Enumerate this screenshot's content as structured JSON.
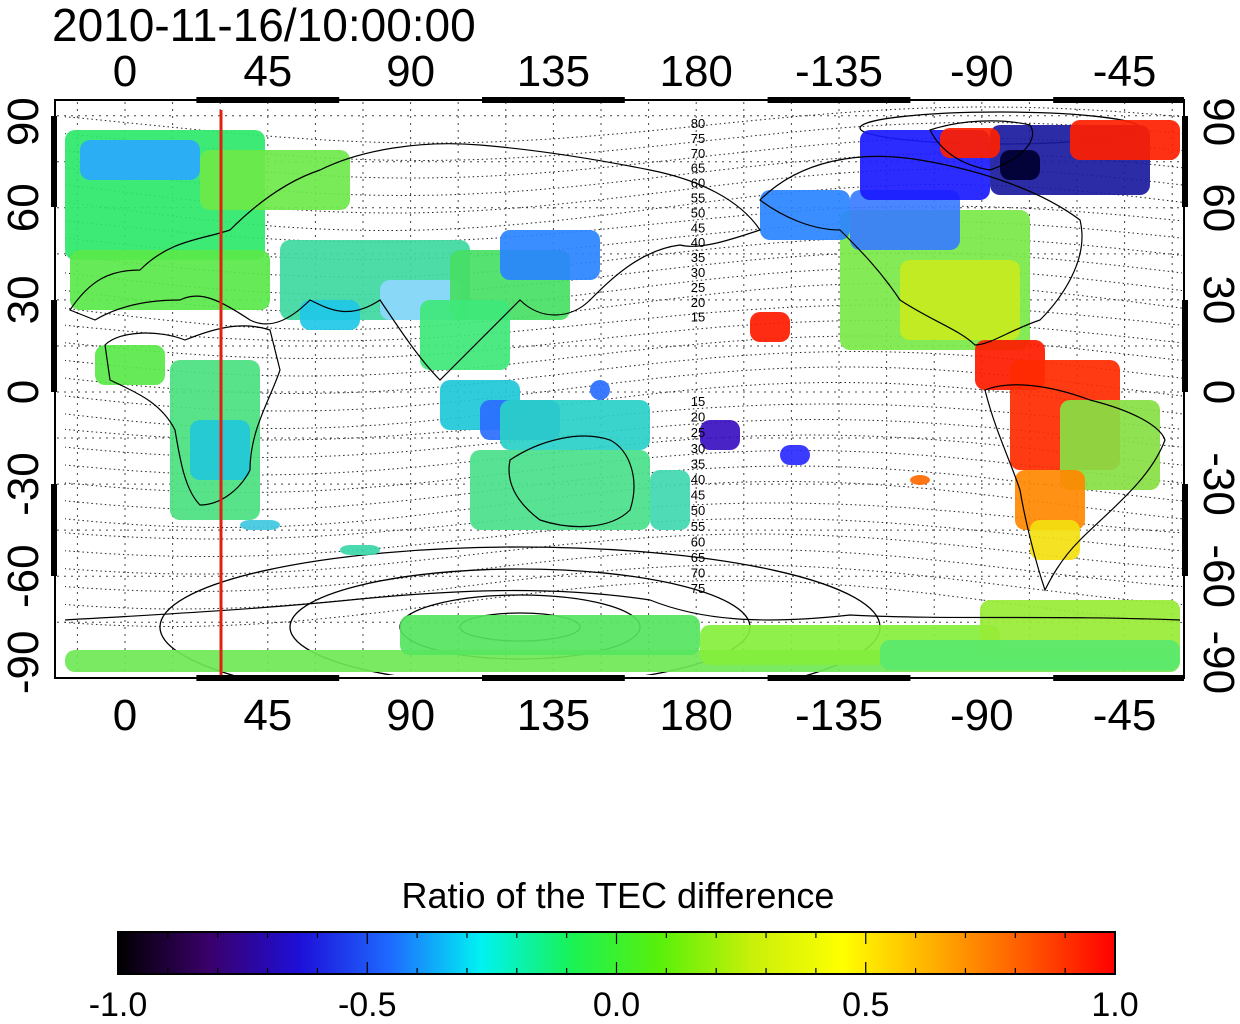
{
  "title": "2010-11-16/10:00:00",
  "map": {
    "lon_ticks": [
      "0",
      "45",
      "90",
      "135",
      "180",
      "-135",
      "-90",
      "-45"
    ],
    "lat_ticks_left": [
      "90",
      "60",
      "30",
      "0",
      "-30",
      "-60",
      "-90"
    ],
    "lat_ticks_right": [
      "90",
      "60",
      "30",
      "0",
      "-30",
      "-60",
      "-90"
    ],
    "contour_labels_north": [
      "80",
      "75",
      "70",
      "65",
      "60",
      "55",
      "50",
      "45",
      "40",
      "35",
      "30",
      "25",
      "20",
      "15"
    ],
    "contour_labels_south": [
      "15",
      "20",
      "25",
      "30",
      "35",
      "40",
      "45",
      "50",
      "55",
      "60",
      "65",
      "70",
      "75"
    ],
    "marker_line_color": "#e02010",
    "grid": "dotted"
  },
  "colorbar": {
    "title": "Ratio of the TEC difference",
    "tick_labels": [
      "-1.0",
      "-0.5",
      "0.0",
      "0.5",
      "1.0"
    ],
    "colormap": [
      "#000000",
      "#3a006a",
      "#1e0fd8",
      "#1e6aff",
      "#00f2f2",
      "#19f255",
      "#5af00a",
      "#c8f00a",
      "#ffff00",
      "#ffae00",
      "#ff5a00",
      "#ff0000"
    ]
  }
}
